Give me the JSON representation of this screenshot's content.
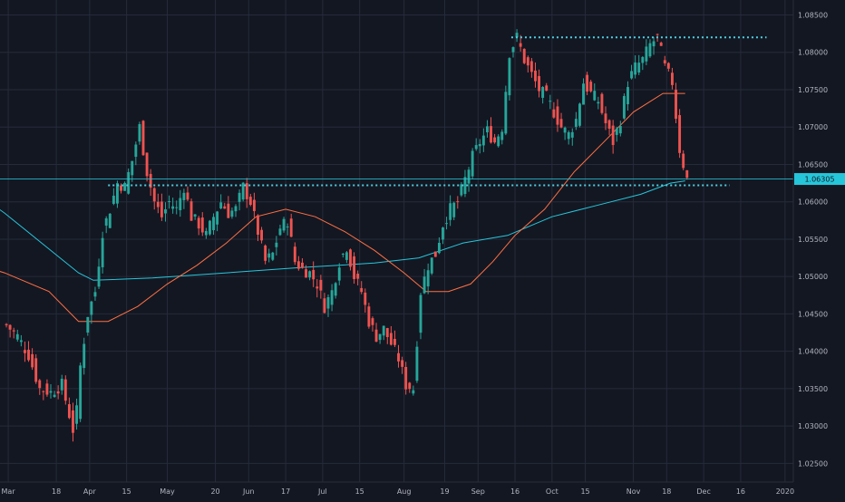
{
  "chart_data": {
    "type": "candlestick",
    "title": "",
    "xlabel": "",
    "ylabel": "",
    "ylim": [
      1.0225,
      1.087
    ],
    "grid": true,
    "y_ticks": [
      1.025,
      1.03,
      1.035,
      1.04,
      1.045,
      1.05,
      1.055,
      1.06,
      1.065,
      1.07,
      1.075,
      1.08,
      1.085
    ],
    "y_tick_labels": [
      "1.02500",
      "1.03000",
      "1.03500",
      "1.04000",
      "1.04500",
      "1.05000",
      "1.05500",
      "1.06000",
      "1.06500",
      "1.07000",
      "1.07500",
      "1.08000",
      "1.08500"
    ],
    "x_tick_labels": [
      {
        "label": "Mar",
        "bar": 1
      },
      {
        "label": "18",
        "bar": 14
      },
      {
        "label": "Apr",
        "bar": 23
      },
      {
        "label": "15",
        "bar": 33
      },
      {
        "label": "May",
        "bar": 44
      },
      {
        "label": "20",
        "bar": 57
      },
      {
        "label": "Jun",
        "bar": 66
      },
      {
        "label": "17",
        "bar": 76
      },
      {
        "label": "Jul",
        "bar": 86
      },
      {
        "label": "15",
        "bar": 96
      },
      {
        "label": "Aug",
        "bar": 108
      },
      {
        "label": "19",
        "bar": 119
      },
      {
        "label": "Sep",
        "bar": 128
      },
      {
        "label": "16",
        "bar": 138
      },
      {
        "label": "Oct",
        "bar": 148
      },
      {
        "label": "15",
        "bar": 157
      },
      {
        "label": "Nov",
        "bar": 170
      },
      {
        "label": "18",
        "bar": 179
      },
      {
        "label": "Dec",
        "bar": 189
      },
      {
        "label": "16",
        "bar": 199
      },
      {
        "label": "2020",
        "bar": 211
      }
    ],
    "current_price_label": "1.06305",
    "current_price": 1.06305,
    "horizontal_levels": [
      {
        "name": "resistance",
        "value": 1.082,
        "from_bar": 137,
        "to_bar": 206
      },
      {
        "name": "support",
        "value": 1.0622,
        "from_bar": 28,
        "to_bar": 196
      }
    ],
    "ohlc_anchors": [
      [
        0,
        1.0435
      ],
      [
        3,
        1.042
      ],
      [
        6,
        1.0395
      ],
      [
        9,
        1.035
      ],
      [
        12,
        1.0345
      ],
      [
        15,
        1.0355
      ],
      [
        18,
        1.0295
      ],
      [
        19,
        1.032
      ],
      [
        20,
        1.038
      ],
      [
        22,
        1.045
      ],
      [
        24,
        1.048
      ],
      [
        26,
        1.056
      ],
      [
        28,
        1.059
      ],
      [
        30,
        1.0625
      ],
      [
        32,
        1.062
      ],
      [
        34,
        1.0655
      ],
      [
        36,
        1.07
      ],
      [
        38,
        1.064
      ],
      [
        40,
        1.06
      ],
      [
        42,
        1.058
      ],
      [
        44,
        1.06
      ],
      [
        46,
        1.059
      ],
      [
        48,
        1.062
      ],
      [
        50,
        1.058
      ],
      [
        52,
        1.057
      ],
      [
        54,
        1.0555
      ],
      [
        56,
        1.058
      ],
      [
        58,
        1.06
      ],
      [
        60,
        1.0585
      ],
      [
        62,
        1.059
      ],
      [
        64,
        1.062
      ],
      [
        66,
        1.06
      ],
      [
        68,
        1.056
      ],
      [
        70,
        1.052
      ],
      [
        72,
        1.053
      ],
      [
        74,
        1.0565
      ],
      [
        76,
        1.0575
      ],
      [
        78,
        1.052
      ],
      [
        80,
        1.051
      ],
      [
        82,
        1.0505
      ],
      [
        84,
        1.049
      ],
      [
        86,
        1.046
      ],
      [
        88,
        1.048
      ],
      [
        90,
        1.052
      ],
      [
        92,
        1.054
      ],
      [
        94,
        1.05
      ],
      [
        96,
        1.048
      ],
      [
        98,
        1.044
      ],
      [
        100,
        1.042
      ],
      [
        102,
        1.043
      ],
      [
        104,
        1.041
      ],
      [
        106,
        1.039
      ],
      [
        108,
        1.0355
      ],
      [
        110,
        1.035
      ],
      [
        112,
        1.048
      ],
      [
        114,
        1.0515
      ],
      [
        116,
        1.053
      ],
      [
        118,
        1.057
      ],
      [
        120,
        1.059
      ],
      [
        122,
        1.06
      ],
      [
        124,
        1.063
      ],
      [
        126,
        1.066
      ],
      [
        128,
        1.068
      ],
      [
        130,
        1.0695
      ],
      [
        132,
        1.068
      ],
      [
        134,
        1.07
      ],
      [
        136,
        1.08
      ],
      [
        138,
        1.082
      ],
      [
        140,
        1.079
      ],
      [
        142,
        1.077
      ],
      [
        144,
        1.075
      ],
      [
        146,
        1.074
      ],
      [
        148,
        1.072
      ],
      [
        150,
        1.07
      ],
      [
        152,
        1.069
      ],
      [
        154,
        1.071
      ],
      [
        156,
        1.076
      ],
      [
        158,
        1.0745
      ],
      [
        160,
        1.0735
      ],
      [
        162,
        1.0705
      ],
      [
        164,
        1.068
      ],
      [
        166,
        1.071
      ],
      [
        168,
        1.076
      ],
      [
        170,
        1.078
      ],
      [
        172,
        1.079
      ],
      [
        174,
        1.081
      ],
      [
        176,
        1.082
      ],
      [
        178,
        1.078
      ],
      [
        180,
        1.076
      ],
      [
        182,
        1.067
      ],
      [
        184,
        1.063
      ]
    ],
    "moving_averages": [
      {
        "name": "",
        "color": "#26c6da",
        "points": [
          [
            -10,
            1.062
          ],
          [
            0,
            1.0585
          ],
          [
            10,
            1.0545
          ],
          [
            20,
            1.0505
          ],
          [
            24,
            1.0495
          ],
          [
            40,
            1.0498
          ],
          [
            60,
            1.0505
          ],
          [
            80,
            1.0512
          ],
          [
            100,
            1.0518
          ],
          [
            112,
            1.0525
          ],
          [
            124,
            1.0545
          ],
          [
            136,
            1.0555
          ],
          [
            148,
            1.058
          ],
          [
            160,
            1.0595
          ],
          [
            172,
            1.061
          ],
          [
            180,
            1.0625
          ],
          [
            184,
            1.0628
          ]
        ]
      },
      {
        "name": "",
        "color": "#ff7043",
        "points": [
          [
            -10,
            1.052
          ],
          [
            0,
            1.0505
          ],
          [
            12,
            1.048
          ],
          [
            20,
            1.044
          ],
          [
            28,
            1.044
          ],
          [
            36,
            1.046
          ],
          [
            44,
            1.049
          ],
          [
            52,
            1.0515
          ],
          [
            60,
            1.0545
          ],
          [
            68,
            1.058
          ],
          [
            76,
            1.059
          ],
          [
            84,
            1.058
          ],
          [
            92,
            1.056
          ],
          [
            100,
            1.0535
          ],
          [
            108,
            1.0505
          ],
          [
            114,
            1.048
          ],
          [
            120,
            1.048
          ],
          [
            126,
            1.049
          ],
          [
            132,
            1.052
          ],
          [
            138,
            1.0555
          ],
          [
            146,
            1.059
          ],
          [
            154,
            1.064
          ],
          [
            162,
            1.068
          ],
          [
            170,
            1.072
          ],
          [
            178,
            1.0745
          ],
          [
            184,
            1.0745
          ]
        ]
      }
    ],
    "colors": {
      "background": "#131722",
      "grid": "#262b3a",
      "up": "#26a69a",
      "down": "#ef5350",
      "level": "#4dd0e1",
      "axis_text": "#b2b5be",
      "price_tag": "#26c6da"
    }
  }
}
